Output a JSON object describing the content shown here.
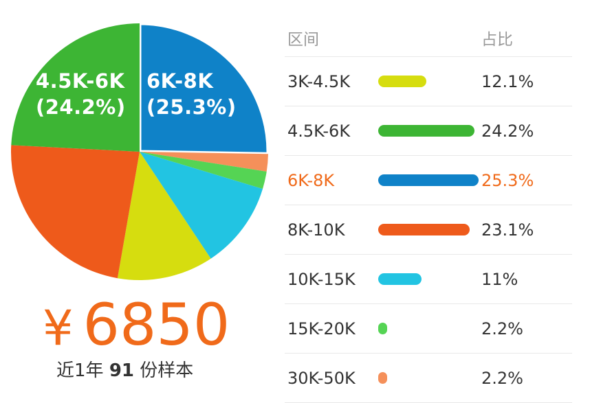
{
  "chart_data": {
    "type": "pie",
    "title": "",
    "series": [
      {
        "label": "3K-4.5K",
        "value": 12.1,
        "pct_text": "12.1%",
        "color": "#d6dd0f"
      },
      {
        "label": "4.5K-6K",
        "value": 24.2,
        "pct_text": "24.2%",
        "color": "#3db534"
      },
      {
        "label": "6K-8K",
        "value": 25.3,
        "pct_text": "25.3%",
        "color": "#0f82c8"
      },
      {
        "label": "8K-10K",
        "value": 23.1,
        "pct_text": "23.1%",
        "color": "#ee5a1b"
      },
      {
        "label": "10K-15K",
        "value": 11,
        "pct_text": "11%",
        "color": "#22c4e2"
      },
      {
        "label": "15K-20K",
        "value": 2.2,
        "pct_text": "2.2%",
        "color": "#55d454"
      },
      {
        "label": "30K-50K",
        "value": 2.2,
        "pct_text": "2.2%",
        "color": "#f5905a"
      }
    ],
    "pie_labels": {
      "a": {
        "line1": "4.5K-6K",
        "line2": "(24.2%)"
      },
      "b": {
        "line1": "6K-8K",
        "line2": "(25.3%)"
      }
    },
    "highlight": "6K-8K"
  },
  "table": {
    "header_range": "区间",
    "header_pct": "占比"
  },
  "summary": {
    "currency": "¥",
    "salary": "6850",
    "sample_prefix": "近1年",
    "sample_count": "91",
    "sample_suffix": "份样本"
  },
  "colors": {
    "accent": "#f06a1a"
  }
}
